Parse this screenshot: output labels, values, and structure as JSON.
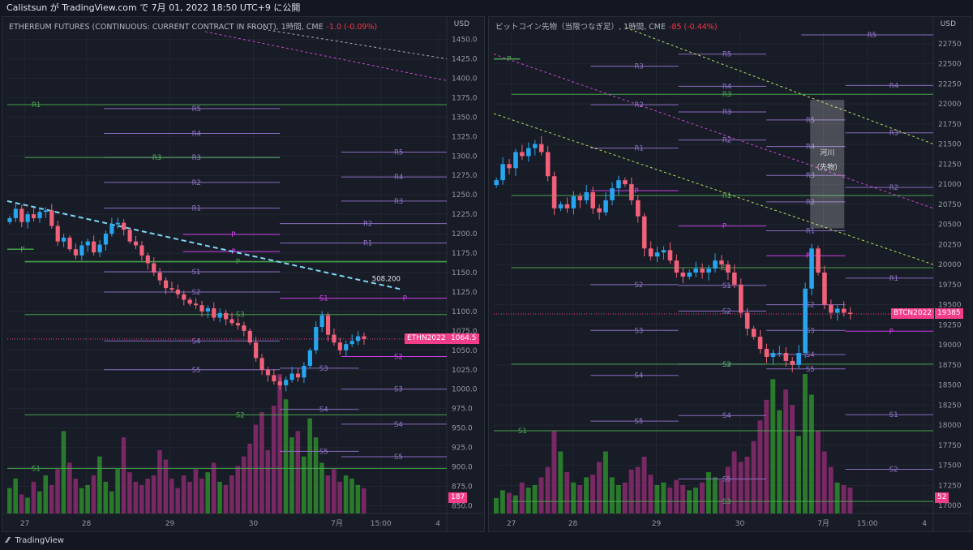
{
  "header": {
    "text": "Calistsun が TradingView.com で 7月 01, 2022 18:50 UTC+9 に公開"
  },
  "footer": {
    "logo_text": "TradingView"
  },
  "colors": {
    "up": "#26a6f0",
    "down": "#f2617a",
    "vol_up": "#2e8b2e",
    "vol_down": "#8a2a6e",
    "pivot_green": "#4caf50",
    "pivot_purple": "#9575cd",
    "pivot_p": "#e040fb",
    "tag": "#f23d8b"
  },
  "charts": [
    {
      "id": "left",
      "title": "ETHEREUM FUTURES (CONTINUOUS: CURRENT CONTRACT IN FRONT), 1時間, CME",
      "change": "-1.0 (-0.09%)",
      "currency": "USD",
      "x_labels": [
        "27",
        "28",
        "29",
        "30",
        "7月",
        "15:00",
        "4"
      ],
      "x_positions": [
        0.04,
        0.18,
        0.37,
        0.56,
        0.75,
        0.85,
        0.98
      ],
      "y_ticks": [
        850,
        875,
        900,
        925,
        950,
        975,
        1000,
        1025,
        1050,
        1075,
        1100,
        1125,
        1150,
        1175,
        1200,
        1225,
        1250,
        1275,
        1300,
        1325,
        1350,
        1375,
        1400,
        1425,
        1450
      ],
      "ylim": [
        840,
        1460
      ],
      "price_tag": {
        "symbol": "ETHN2022",
        "value": "1064.5",
        "price": 1064.5
      },
      "volume_tag": "187",
      "annotation": "508.200",
      "candles_key": "left",
      "levels": [
        {
          "label": "R1",
          "price": 1366,
          "x0": 0.0,
          "x1": 1.0,
          "color": "green",
          "side": "left"
        },
        {
          "label": "R5",
          "price": 1361,
          "x0": 0.22,
          "x1": 0.62,
          "color": "purple"
        },
        {
          "label": "R4",
          "price": 1329,
          "x0": 0.22,
          "x1": 0.62,
          "color": "purple"
        },
        {
          "label": "R3",
          "price": 1298,
          "x0": 0.22,
          "x1": 0.62,
          "color": "purple"
        },
        {
          "label": "R3",
          "price": 1298,
          "x0": 0.04,
          "x1": 0.62,
          "color": "green"
        },
        {
          "label": "R2",
          "price": 1266,
          "x0": 0.22,
          "x1": 0.62,
          "color": "purple"
        },
        {
          "label": "R1",
          "price": 1233,
          "x0": 0.22,
          "x1": 0.62,
          "color": "purple"
        },
        {
          "label": "R5",
          "price": 1305,
          "x0": 0.76,
          "x1": 1.0,
          "color": "purple"
        },
        {
          "label": "R4",
          "price": 1273,
          "x0": 0.76,
          "x1": 1.0,
          "color": "purple"
        },
        {
          "label": "R3",
          "price": 1242,
          "x0": 0.76,
          "x1": 1.0,
          "color": "purple"
        },
        {
          "label": "R2",
          "price": 1213,
          "x0": 0.62,
          "x1": 1.0,
          "color": "purple"
        },
        {
          "label": "R1",
          "price": 1188,
          "x0": 0.62,
          "x1": 1.0,
          "color": "purple"
        },
        {
          "label": "P",
          "price": 1199,
          "x0": 0.4,
          "x1": 0.62,
          "color": "p"
        },
        {
          "label": "P",
          "price": 1180,
          "x0": 0.0,
          "x1": 0.06,
          "color": "green"
        },
        {
          "label": "P",
          "price": 1164,
          "x0": 0.04,
          "x1": 1.0,
          "color": "green"
        },
        {
          "label": "P",
          "price": 1177,
          "x0": 0.4,
          "x1": 0.62,
          "color": "p"
        },
        {
          "label": "S1",
          "price": 1151,
          "x0": 0.22,
          "x1": 0.62,
          "color": "purple"
        },
        {
          "label": "S2",
          "price": 1125,
          "x0": 0.22,
          "x1": 0.62,
          "color": "purple"
        },
        {
          "label": "S1",
          "price": 1117,
          "x0": 0.62,
          "x1": 0.8,
          "color": "p"
        },
        {
          "label": "P",
          "price": 1117,
          "x0": 0.8,
          "x1": 1.0,
          "color": "p"
        },
        {
          "label": "S3",
          "price": 1096,
          "x0": 0.04,
          "x1": 1.0,
          "color": "green"
        },
        {
          "label": "S4",
          "price": 1062,
          "x0": 0.22,
          "x1": 0.62,
          "color": "purple"
        },
        {
          "label": "S2",
          "price": 1042,
          "x0": 0.76,
          "x1": 1.0,
          "color": "p"
        },
        {
          "label": "S3",
          "price": 1027,
          "x0": 0.62,
          "x1": 0.8,
          "color": "purple"
        },
        {
          "label": "S5",
          "price": 1025,
          "x0": 0.22,
          "x1": 0.62,
          "color": "purple"
        },
        {
          "label": "S3",
          "price": 1000,
          "x0": 0.76,
          "x1": 1.0,
          "color": "purple"
        },
        {
          "label": "S4",
          "price": 974,
          "x0": 0.62,
          "x1": 0.8,
          "color": "purple"
        },
        {
          "label": "S2",
          "price": 967,
          "x0": 0.04,
          "x1": 1.0,
          "color": "green"
        },
        {
          "label": "S4",
          "price": 955,
          "x0": 0.76,
          "x1": 1.0,
          "color": "purple"
        },
        {
          "label": "S5",
          "price": 920,
          "x0": 0.62,
          "x1": 0.8,
          "color": "purple"
        },
        {
          "label": "S5",
          "price": 913,
          "x0": 0.76,
          "x1": 1.0,
          "color": "purple"
        },
        {
          "label": "S1",
          "price": 898,
          "x0": 0.0,
          "x1": 1.0,
          "color": "green",
          "side": "left"
        }
      ],
      "trendlines": [
        {
          "p1": [
            0.0,
            1242
          ],
          "p2": [
            0.9,
            1128
          ],
          "color": "#7fd8f5",
          "dash": "6,4",
          "width": 2
        },
        {
          "p1": [
            0.55,
            1466
          ],
          "p2": [
            1.0,
            1425
          ],
          "color": "#aaaaaa",
          "dash": "3,3",
          "width": 1
        },
        {
          "p1": [
            0.45,
            1460
          ],
          "p2": [
            1.0,
            1397
          ],
          "color": "#c946c9",
          "dash": "3,3",
          "width": 1
        }
      ]
    },
    {
      "id": "right",
      "title": "ビットコイン先物（当限つなぎ足）, 1時間, CME",
      "change": "-85 (-0.44%)",
      "currency": "USD",
      "x_labels": [
        "27",
        "28",
        "29",
        "30",
        "7月",
        "15:00",
        "4"
      ],
      "x_positions": [
        0.04,
        0.18,
        0.37,
        0.56,
        0.75,
        0.85,
        0.98
      ],
      "y_ticks": [
        17000,
        17250,
        17500,
        17750,
        18000,
        18250,
        18500,
        18750,
        19000,
        19250,
        19500,
        19750,
        20000,
        20250,
        20500,
        20750,
        21000,
        21250,
        21500,
        21750,
        22000,
        22250,
        22500,
        22750
      ],
      "ylim": [
        16900,
        22900
      ],
      "price_tag": {
        "symbol": "BTCN2022",
        "value": "19385",
        "price": 19385
      },
      "volume_tag": "52",
      "box_label_1": "河川",
      "box_label_2": "（先物）",
      "levels": [
        {
          "label": "R5",
          "price": 22860,
          "x0": 0.7,
          "x1": 1.0,
          "color": "purple"
        },
        {
          "label": "R5",
          "price": 22620,
          "x0": 0.42,
          "x1": 0.62,
          "color": "purple"
        },
        {
          "label": "P",
          "price": 22560,
          "x0": 0.0,
          "x1": 0.06,
          "color": "green"
        },
        {
          "label": "R3",
          "price": 22470,
          "x0": 0.22,
          "x1": 0.42,
          "color": "purple"
        },
        {
          "label": "R4",
          "price": 22220,
          "x0": 0.42,
          "x1": 0.62,
          "color": "purple"
        },
        {
          "label": "R4",
          "price": 22230,
          "x0": 0.8,
          "x1": 1.0,
          "color": "purple"
        },
        {
          "label": "R3",
          "price": 22120,
          "x0": 0.04,
          "x1": 1.0,
          "color": "green"
        },
        {
          "label": "R2",
          "price": 21990,
          "x0": 0.22,
          "x1": 0.42,
          "color": "purple"
        },
        {
          "label": "R3",
          "price": 21900,
          "x0": 0.42,
          "x1": 0.62,
          "color": "purple"
        },
        {
          "label": "R5",
          "price": 21800,
          "x0": 0.62,
          "x1": 0.8,
          "color": "purple"
        },
        {
          "label": "R3",
          "price": 21640,
          "x0": 0.8,
          "x1": 1.0,
          "color": "purple"
        },
        {
          "label": "R2",
          "price": 21550,
          "x0": 0.42,
          "x1": 0.62,
          "color": "purple"
        },
        {
          "label": "R1",
          "price": 21450,
          "x0": 0.22,
          "x1": 0.42,
          "color": "purple"
        },
        {
          "label": "R4",
          "price": 21470,
          "x0": 0.62,
          "x1": 0.8,
          "color": "purple"
        },
        {
          "label": "R3",
          "price": 21110,
          "x0": 0.62,
          "x1": 0.8,
          "color": "purple"
        },
        {
          "label": "R2",
          "price": 20960,
          "x0": 0.8,
          "x1": 1.0,
          "color": "purple"
        },
        {
          "label": "P",
          "price": 20920,
          "x0": 0.22,
          "x1": 0.42,
          "color": "p"
        },
        {
          "label": "R1",
          "price": 20860,
          "x0": 0.04,
          "x1": 1.0,
          "color": "green"
        },
        {
          "label": "R2",
          "price": 20780,
          "x0": 0.62,
          "x1": 0.8,
          "color": "purple"
        },
        {
          "label": "P",
          "price": 20480,
          "x0": 0.42,
          "x1": 0.62,
          "color": "p"
        },
        {
          "label": "R1",
          "price": 20420,
          "x0": 0.62,
          "x1": 0.8,
          "color": "purple"
        },
        {
          "label": "P",
          "price": 20110,
          "x0": 0.62,
          "x1": 0.8,
          "color": "p"
        },
        {
          "label": "S1",
          "price": 19960,
          "x0": 0.04,
          "x1": 1.0,
          "color": "green"
        },
        {
          "label": "R1",
          "price": 19830,
          "x0": 0.8,
          "x1": 1.0,
          "color": "purple"
        },
        {
          "label": "S2",
          "price": 19750,
          "x0": 0.22,
          "x1": 0.42,
          "color": "purple"
        },
        {
          "label": "S1",
          "price": 19740,
          "x0": 0.42,
          "x1": 0.62,
          "color": "purple"
        },
        {
          "label": "S2",
          "price": 19500,
          "x0": 0.62,
          "x1": 0.8,
          "color": "purple"
        },
        {
          "label": "S2",
          "price": 19420,
          "x0": 0.42,
          "x1": 0.62,
          "color": "purple"
        },
        {
          "label": "S3",
          "price": 19180,
          "x0": 0.22,
          "x1": 0.42,
          "color": "purple"
        },
        {
          "label": "S3",
          "price": 19180,
          "x0": 0.62,
          "x1": 0.8,
          "color": "purple"
        },
        {
          "label": "P",
          "price": 19170,
          "x0": 0.8,
          "x1": 1.0,
          "color": "p"
        },
        {
          "label": "S4",
          "price": 18880,
          "x0": 0.62,
          "x1": 0.8,
          "color": "purple"
        },
        {
          "label": "S3",
          "price": 18760,
          "x0": 0.42,
          "x1": 0.62,
          "color": "purple"
        },
        {
          "label": "S2",
          "price": 18760,
          "x0": 0.04,
          "x1": 1.0,
          "color": "green"
        },
        {
          "label": "S5",
          "price": 18700,
          "x0": 0.62,
          "x1": 0.8,
          "color": "purple"
        },
        {
          "label": "S4",
          "price": 18620,
          "x0": 0.22,
          "x1": 0.42,
          "color": "purple"
        },
        {
          "label": "S1",
          "price": 18130,
          "x0": 0.8,
          "x1": 1.0,
          "color": "purple"
        },
        {
          "label": "S4",
          "price": 18120,
          "x0": 0.42,
          "x1": 0.62,
          "color": "purple"
        },
        {
          "label": "S5",
          "price": 18050,
          "x0": 0.22,
          "x1": 0.42,
          "color": "purple"
        },
        {
          "label": "S1",
          "price": 17930,
          "x0": 0.0,
          "x1": 1.0,
          "color": "green",
          "side": "left"
        },
        {
          "label": "S2",
          "price": 17450,
          "x0": 0.8,
          "x1": 1.0,
          "color": "purple"
        },
        {
          "label": "S5",
          "price": 17330,
          "x0": 0.42,
          "x1": 0.62,
          "color": "purple"
        },
        {
          "label": "S3",
          "price": 17050,
          "x0": 0.04,
          "x1": 1.0,
          "color": "green"
        }
      ],
      "trendlines": [
        {
          "p1": [
            0.0,
            22620
          ],
          "p2": [
            1.0,
            20700
          ],
          "color": "#c946c9",
          "dash": "3,3",
          "width": 1
        },
        {
          "p1": [
            0.3,
            22950
          ],
          "p2": [
            1.0,
            21500
          ],
          "color": "#b8e05a",
          "dash": "3,3",
          "width": 1
        },
        {
          "p1": [
            0.0,
            21880
          ],
          "p2": [
            1.0,
            20000
          ],
          "color": "#b8e05a",
          "dash": "3,3",
          "width": 1
        }
      ]
    }
  ],
  "chart_data": [
    {
      "type": "candlestick",
      "title": "ETHEREUM FUTURES (CONTINUOUS: CURRENT CONTRACT IN FRONT), 1時間, CME",
      "ylim": [
        840,
        1460
      ],
      "close_path": [
        1220,
        1232,
        1215,
        1225,
        1220,
        1228,
        1230,
        1210,
        1190,
        1195,
        1180,
        1172,
        1185,
        1190,
        1176,
        1186,
        1200,
        1212,
        1214,
        1205,
        1190,
        1185,
        1172,
        1162,
        1150,
        1140,
        1130,
        1128,
        1122,
        1115,
        1110,
        1108,
        1100,
        1104,
        1092,
        1098,
        1090,
        1085,
        1082,
        1075,
        1060,
        1040,
        1025,
        1018,
        1010,
        1005,
        1012,
        1020,
        1015,
        1030,
        1050,
        1080,
        1095,
        1070,
        1060,
        1050,
        1058,
        1062,
        1068,
        1064.5
      ],
      "volume_path": [
        40,
        55,
        30,
        25,
        50,
        35,
        60,
        45,
        70,
        130,
        80,
        55,
        40,
        45,
        60,
        90,
        50,
        35,
        70,
        120,
        65,
        50,
        45,
        55,
        60,
        100,
        85,
        55,
        40,
        60,
        50,
        70,
        55,
        65,
        80,
        50,
        45,
        60,
        75,
        90,
        110,
        140,
        160,
        100,
        170,
        220,
        180,
        120,
        130,
        90,
        150,
        120,
        80,
        60,
        70,
        50,
        60,
        55,
        45,
        40
      ]
    },
    {
      "type": "candlestick",
      "title": "ビットコイン先物（当限つなぎ足）, 1時間, CME",
      "ylim": [
        16900,
        22900
      ],
      "close_path": [
        21050,
        21250,
        21200,
        21400,
        21350,
        21450,
        21500,
        21400,
        21100,
        20700,
        20750,
        20700,
        20850,
        20800,
        20900,
        20700,
        20650,
        20800,
        20950,
        21050,
        21000,
        20800,
        20600,
        20200,
        20100,
        20150,
        20180,
        20050,
        19900,
        19850,
        19900,
        19950,
        19900,
        19950,
        20050,
        20000,
        19900,
        19750,
        19400,
        19200,
        19100,
        18950,
        18850,
        18900,
        18900,
        18800,
        18750,
        18900,
        19700,
        20200,
        19900,
        19500,
        19400,
        19450,
        19400,
        19385
      ],
      "volume_path": [
        30,
        45,
        40,
        35,
        60,
        50,
        55,
        70,
        90,
        160,
        120,
        80,
        60,
        55,
        70,
        75,
        100,
        120,
        70,
        55,
        60,
        85,
        90,
        110,
        75,
        55,
        60,
        50,
        65,
        55,
        45,
        50,
        60,
        80,
        70,
        65,
        90,
        120,
        100,
        110,
        140,
        180,
        220,
        260,
        200,
        240,
        210,
        150,
        270,
        230,
        160,
        120,
        90,
        60,
        55,
        50
      ]
    }
  ]
}
